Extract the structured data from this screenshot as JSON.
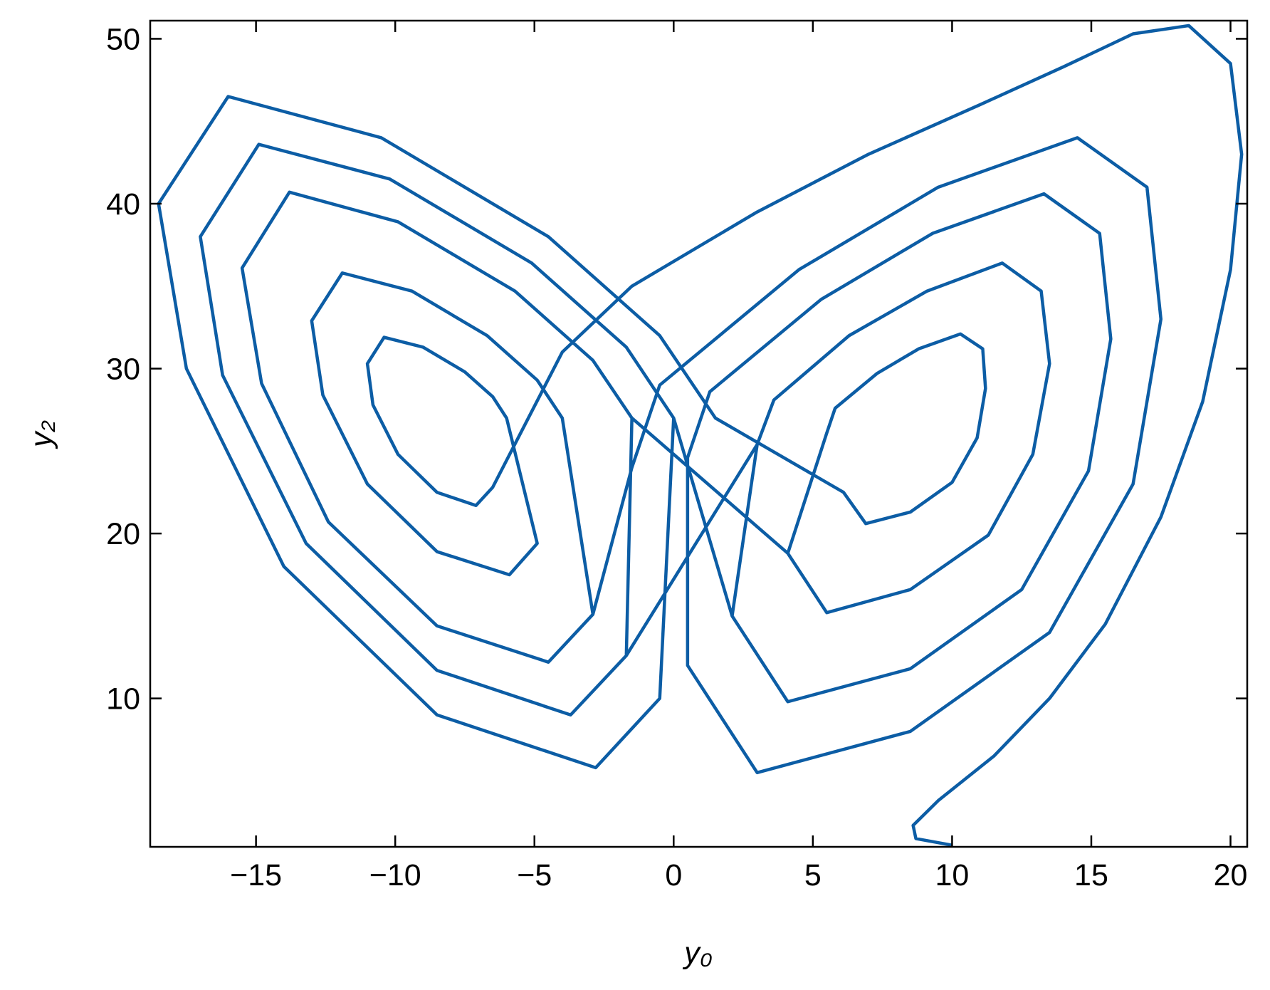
{
  "chart_data": {
    "type": "line",
    "x_label": "y₀",
    "y_label": "y₂",
    "xlim": [
      -18.8,
      20.6
    ],
    "ylim": [
      1.0,
      51.1
    ],
    "xticks": [
      {
        "value": -15,
        "label": "−15"
      },
      {
        "value": -10,
        "label": "−10"
      },
      {
        "value": -5,
        "label": "−5"
      },
      0,
      5,
      10,
      15,
      20
    ],
    "yticks": [
      10,
      20,
      30,
      40,
      50
    ],
    "series": [
      {
        "color": "#0c5da5",
        "x": [
          10,
          8.7,
          8.6,
          9.5,
          11.5,
          13.5,
          15.5,
          17.5,
          19,
          20,
          20.4,
          20,
          18.5,
          16.5,
          14,
          11,
          7,
          3,
          -1.5,
          -4,
          -6.5,
          -7.1,
          -8.5,
          -9.9,
          -10.8,
          -11,
          -10.4,
          -9,
          -7.5,
          -6.5,
          -6,
          -4.9,
          -5.9,
          -8.5,
          -11,
          -12.6,
          -13,
          -11.9,
          -9.4,
          -6.7,
          -4.9,
          -4,
          -2.9,
          -4.5,
          -8.5,
          -12.4,
          -14.8,
          -15.5,
          -13.8,
          -9.9,
          -5.7,
          -2.9,
          -1.5,
          -1.7,
          -3.7,
          -8.5,
          -13.2,
          -16.2,
          -17,
          -14.9,
          -10.2,
          -5.1,
          -1.7,
          0,
          -0.5,
          -2.8,
          -8.5,
          -14,
          -17.5,
          -18.5,
          -16,
          -10.5,
          -4.5,
          -0.5,
          1.5,
          6.1,
          6.9,
          8.5,
          10,
          10.9,
          11.2,
          11.1,
          10.3,
          8.8,
          7.3,
          5.8,
          5.5,
          4.1,
          5.5,
          8.5,
          11.3,
          12.9,
          13.5,
          13.2,
          11.8,
          9.1,
          6.3,
          3.6,
          3,
          2.1,
          4.1,
          8.5,
          12.5,
          14.9,
          15.7,
          15.3,
          13.3,
          9.3,
          5.3,
          1.3,
          0.5,
          0.5,
          3,
          8.5,
          13.5,
          16.5,
          17.5,
          17,
          14.5,
          9.5,
          4.5,
          -0.5,
          -1.5,
          -2.9,
          -4.5,
          -8.5,
          -12.4,
          -14.8,
          -15.5,
          -13.8,
          -9.9,
          -5.7,
          -2.9,
          -1.5,
          4.1,
          5.5,
          8.5,
          11.3,
          12.9,
          13.5,
          13.2,
          11.8,
          9.1,
          6.3,
          3.6,
          3,
          -1.7,
          -3.7,
          -8.5,
          -13.2,
          -16.2,
          -17,
          -14.9,
          -10.2,
          -5.1,
          -1.7,
          0,
          2.1,
          4.1,
          8.5,
          12.5,
          14.9,
          15.7,
          15.3,
          13.3,
          9.3,
          5.3,
          1.3,
          0.5
        ],
        "values": [
          1.1,
          1.5,
          2.3,
          3.8,
          6.5,
          10,
          14.5,
          21,
          28,
          36,
          43,
          48.5,
          50.8,
          50.3,
          48.3,
          46,
          43,
          39.5,
          35,
          31,
          22.8,
          21.7,
          22.5,
          24.8,
          27.8,
          30.3,
          31.9,
          31.3,
          29.8,
          28.3,
          27,
          19.4,
          17.5,
          18.9,
          23,
          28.4,
          32.9,
          35.8,
          34.7,
          32,
          29.3,
          27,
          15.1,
          12.2,
          14.4,
          20.7,
          29.1,
          36.1,
          40.7,
          38.9,
          34.7,
          30.5,
          27,
          12.6,
          9,
          11.7,
          19.4,
          29.6,
          38,
          43.6,
          41.5,
          36.4,
          31.3,
          27,
          10,
          5.8,
          9,
          18,
          30,
          40,
          46.5,
          44,
          38,
          32,
          27,
          22.5,
          20.6,
          21.3,
          23.1,
          25.8,
          28.8,
          31.2,
          32.1,
          31.2,
          29.7,
          27.6,
          26.1,
          18.8,
          15.2,
          16.6,
          19.9,
          24.8,
          30.3,
          34.7,
          36.4,
          34.7,
          32,
          28.1,
          25.4,
          15,
          9.8,
          11.8,
          16.6,
          23.8,
          31.8,
          38.2,
          40.6,
          38.2,
          34.2,
          28.6,
          24.6,
          12,
          5.5,
          8,
          14,
          23,
          33,
          41,
          44,
          41,
          36,
          29,
          24,
          15.1,
          12.2,
          14.4,
          20.7,
          29.1,
          36.1,
          40.7,
          38.9,
          34.7,
          30.5,
          27,
          18.8,
          15.2,
          16.6,
          19.9,
          24.8,
          30.3,
          34.7,
          36.4,
          34.7,
          32,
          28.1,
          25.4,
          12.6,
          9,
          11.7,
          19.4,
          29.6,
          38,
          43.6,
          41.5,
          36.4,
          31.3,
          27,
          15,
          9.8,
          11.8,
          16.6,
          23.8,
          31.8,
          38.2,
          40.6,
          38.2,
          34.2,
          28.6,
          24.6
        ]
      }
    ]
  }
}
